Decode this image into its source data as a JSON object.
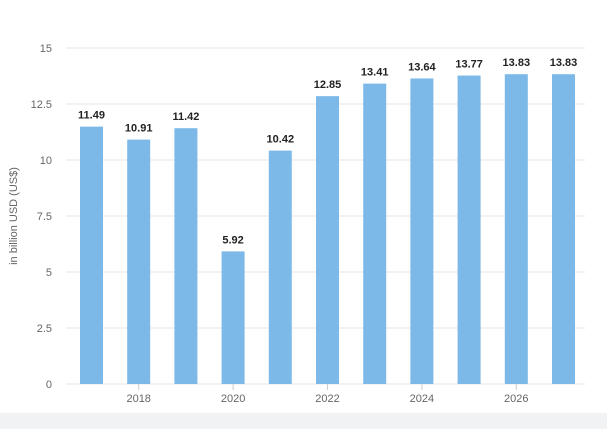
{
  "chart_data": {
    "type": "bar",
    "categories": [
      "2017",
      "2018",
      "2019",
      "2020",
      "2021",
      "2022",
      "2023",
      "2024",
      "2025",
      "2026",
      "2027"
    ],
    "values": [
      11.49,
      10.91,
      11.42,
      5.92,
      10.42,
      12.85,
      13.41,
      13.64,
      13.77,
      13.83,
      13.83
    ],
    "data_labels": [
      "11.49",
      "10.91",
      "11.42",
      "5.92",
      "10.42",
      "12.85",
      "13.41",
      "13.64",
      "13.77",
      "13.83",
      "13.83"
    ],
    "x_tick_labels": [
      "2018",
      "2020",
      "2022",
      "2024",
      "2026"
    ],
    "y_tick_labels": [
      "0",
      "2.5",
      "5",
      "7.5",
      "10",
      "12.5",
      "15"
    ],
    "title": "",
    "xlabel": "",
    "ylabel": "in billion USD (US$)",
    "ylim": [
      0,
      15
    ],
    "grid": true,
    "legend": "none",
    "bar_color": "#7cb9e8",
    "grid_color": "#e6e6e6",
    "label_color": "#222222",
    "tick_color": "#666666"
  }
}
